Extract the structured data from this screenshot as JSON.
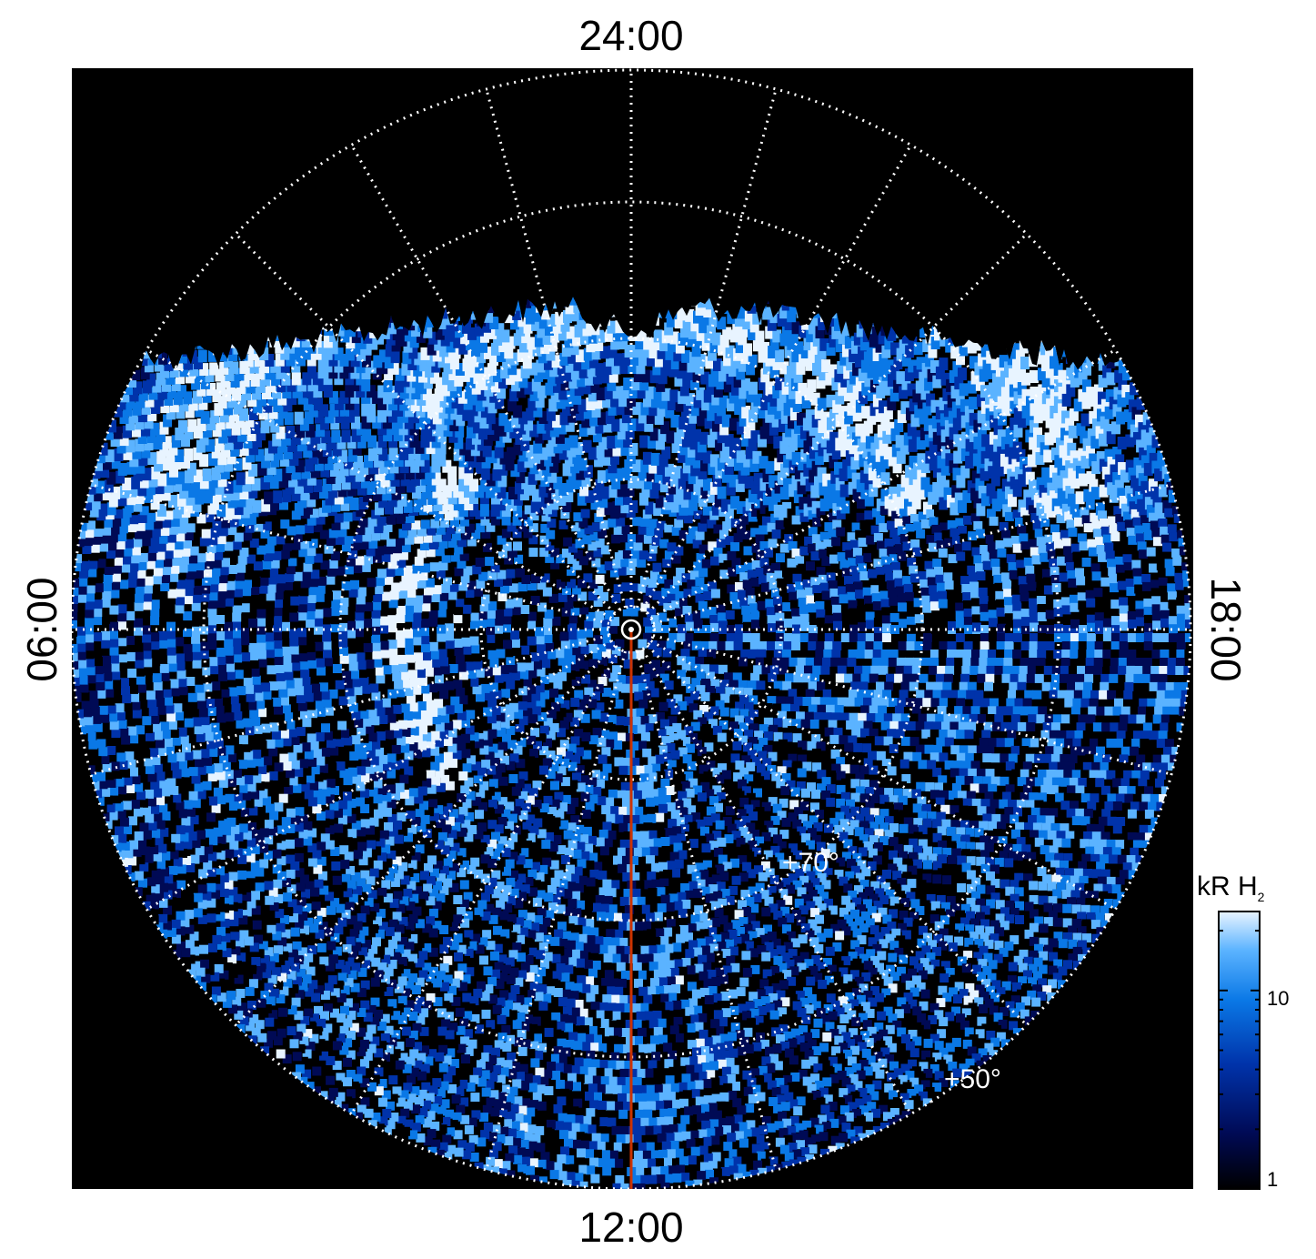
{
  "chart_data": {
    "type": "heatmap",
    "projection": "polar",
    "local_time_labels": {
      "top": "24:00",
      "bottom": "12:00",
      "left": "06:00",
      "right": "18:00"
    },
    "latitude_labels": [
      "+70°",
      "+50°"
    ],
    "colorbar": {
      "title_main": "kR H",
      "title_sub": "2",
      "scale": "log",
      "range": [
        1,
        25
      ],
      "ticks": [
        {
          "value": 10,
          "label": "10"
        },
        {
          "value": 1,
          "label": "1"
        }
      ],
      "colors": [
        "#000000",
        "#000a55",
        "#0033aa",
        "#0a78e6",
        "#5bb3ff",
        "#e8f4ff"
      ]
    },
    "grid": true,
    "meridian_line_color": "#cc3300",
    "background_color": "#000000"
  }
}
